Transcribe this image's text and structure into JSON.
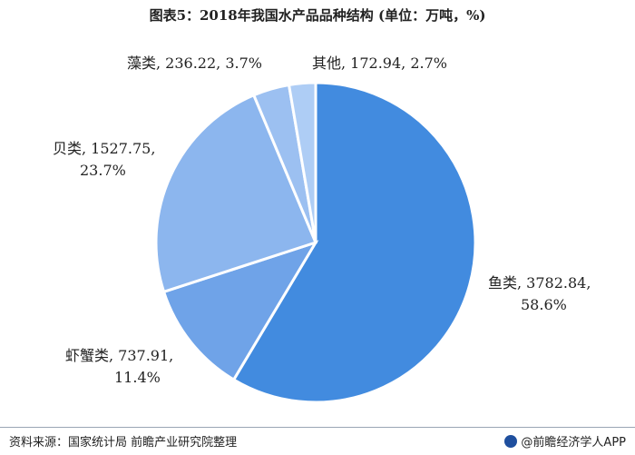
{
  "chart_data": {
    "type": "pie",
    "title": "图表5：2018年我国水产品品种结构 (单位：万吨，%)",
    "slices": [
      {
        "name": "鱼类",
        "value": 3782.84,
        "percent": "58.6%",
        "value_label": "3782.84",
        "color": "#428bdf"
      },
      {
        "name": "虾蟹类",
        "value": 737.91,
        "percent": "11.4%",
        "value_label": "737.91",
        "color": "#6fa3e8"
      },
      {
        "name": "贝类",
        "value": 1527.75,
        "percent": "23.7%",
        "value_label": "1527.75",
        "color": "#8cb6ee"
      },
      {
        "name": "藻类",
        "value": 236.22,
        "percent": "3.7%",
        "value_label": "236.22",
        "color": "#9cc0f1"
      },
      {
        "name": "其他",
        "value": 172.94,
        "percent": "2.7%",
        "value_label": "172.94",
        "color": "#aecdf5"
      }
    ],
    "start_angle_deg": 0,
    "direction": "clockwise",
    "slice_border_color": "#ffffff"
  },
  "footer": {
    "source": "资料来源：国家统计局 前瞻产业研究院整理",
    "brand": "@前瞻经济学人APP",
    "brand_color": "#1f4f9e"
  }
}
